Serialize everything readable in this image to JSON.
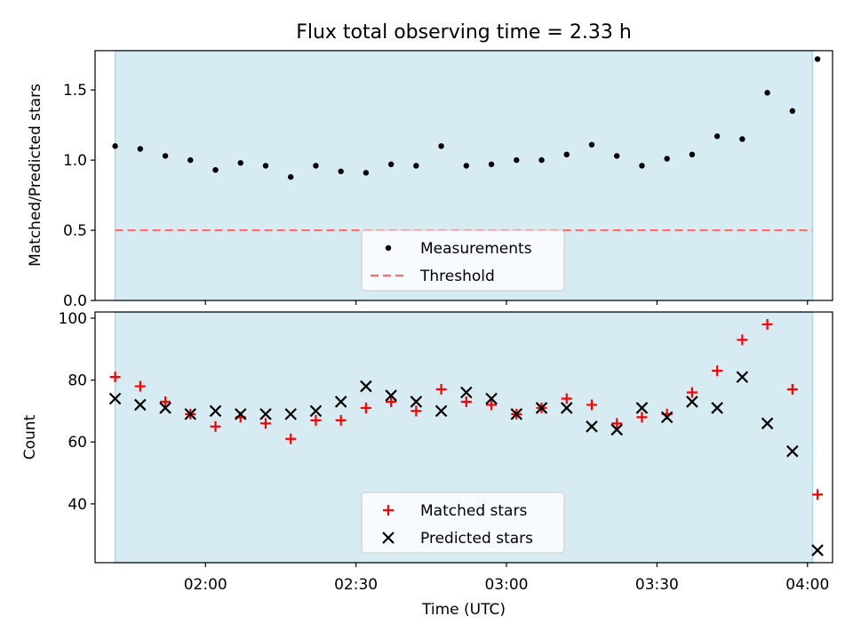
{
  "title": "Flux total observing time = 2.33 h",
  "colors": {
    "band": "#add8e6",
    "measurement": "#000000",
    "threshold": "#ff6b6b",
    "matched": "#ff0000",
    "predicted": "#000000"
  },
  "chart_data": [
    {
      "type": "scatter",
      "ylabel": "Matched/Predicted stars",
      "xlim": [
        "01:38",
        "04:05"
      ],
      "ylim": [
        0,
        1.78
      ],
      "x_ticks_shown": false,
      "y_ticks": [
        "0.0",
        "0.5",
        "1.0",
        "1.5"
      ],
      "observing_band": [
        "01:42",
        "04:01"
      ],
      "threshold": 0.5,
      "legend_position": "bottom-center",
      "legend": [
        "Measurements",
        "Threshold"
      ],
      "series": [
        {
          "name": "Measurements",
          "marker": "dot",
          "x": [
            "01:42",
            "01:47",
            "01:52",
            "01:57",
            "02:02",
            "02:07",
            "02:12",
            "02:17",
            "02:22",
            "02:27",
            "02:32",
            "02:37",
            "02:42",
            "02:47",
            "02:52",
            "02:57",
            "03:02",
            "03:07",
            "03:12",
            "03:17",
            "03:22",
            "03:27",
            "03:32",
            "03:37",
            "03:42",
            "03:47",
            "03:52",
            "03:57",
            "04:02"
          ],
          "y": [
            1.1,
            1.08,
            1.03,
            1.0,
            0.93,
            0.98,
            0.96,
            0.88,
            0.96,
            0.92,
            0.91,
            0.97,
            0.96,
            1.1,
            0.96,
            0.97,
            1.0,
            1.0,
            1.04,
            1.11,
            1.03,
            0.96,
            1.01,
            1.04,
            1.17,
            1.15,
            1.48,
            1.35,
            1.72
          ]
        }
      ]
    },
    {
      "type": "scatter",
      "xlabel": "Time (UTC)",
      "ylabel": "Count",
      "xlim": [
        "01:38",
        "04:05"
      ],
      "ylim": [
        21,
        102
      ],
      "x_ticks": [
        "02:00",
        "02:30",
        "03:00",
        "03:30",
        "04:00"
      ],
      "y_ticks": [
        "40",
        "60",
        "80",
        "100"
      ],
      "observing_band": [
        "01:42",
        "04:01"
      ],
      "legend_position": "bottom-center",
      "legend": [
        "Matched stars",
        "Predicted stars"
      ],
      "series": [
        {
          "name": "Matched stars",
          "marker": "plus",
          "x": [
            "01:42",
            "01:47",
            "01:52",
            "01:57",
            "02:02",
            "02:07",
            "02:12",
            "02:17",
            "02:22",
            "02:27",
            "02:32",
            "02:37",
            "02:42",
            "02:47",
            "02:52",
            "02:57",
            "03:02",
            "03:07",
            "03:12",
            "03:17",
            "03:22",
            "03:27",
            "03:32",
            "03:37",
            "03:42",
            "03:47",
            "03:52",
            "03:57",
            "04:02"
          ],
          "y": [
            81,
            78,
            73,
            69,
            65,
            68,
            66,
            61,
            67,
            67,
            71,
            73,
            70,
            77,
            73,
            72,
            69,
            71,
            74,
            72,
            66,
            68,
            69,
            76,
            83,
            93,
            98,
            77,
            43
          ]
        },
        {
          "name": "Predicted stars",
          "marker": "x",
          "x": [
            "01:42",
            "01:47",
            "01:52",
            "01:57",
            "02:02",
            "02:07",
            "02:12",
            "02:17",
            "02:22",
            "02:27",
            "02:32",
            "02:37",
            "02:42",
            "02:47",
            "02:52",
            "02:57",
            "03:02",
            "03:07",
            "03:12",
            "03:17",
            "03:22",
            "03:27",
            "03:32",
            "03:37",
            "03:42",
            "03:47",
            "03:52",
            "03:57",
            "04:02"
          ],
          "y": [
            74,
            72,
            71,
            69,
            70,
            69,
            69,
            69,
            70,
            73,
            78,
            75,
            73,
            70,
            76,
            74,
            69,
            71,
            71,
            65,
            64,
            71,
            68,
            73,
            71,
            81,
            66,
            57,
            25
          ]
        }
      ]
    }
  ]
}
